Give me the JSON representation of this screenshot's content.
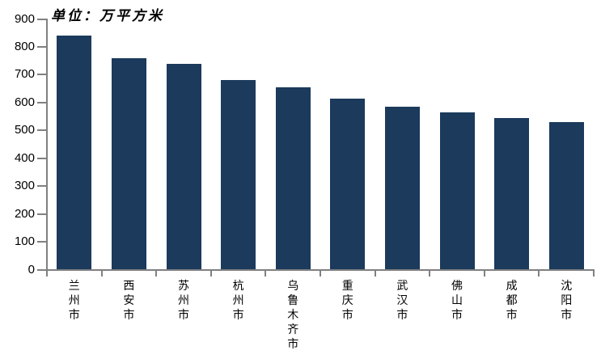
{
  "chart_data": {
    "type": "bar",
    "title": "单位：万平方米",
    "categories": [
      "兰州市",
      "西安市",
      "苏州市",
      "杭州市",
      "乌鲁木齐市",
      "重庆市",
      "武汉市",
      "佛山市",
      "成都市",
      "沈阳市"
    ],
    "values": [
      840,
      760,
      740,
      680,
      655,
      613,
      584,
      566,
      544,
      530
    ],
    "xlabel": "",
    "ylabel": "",
    "ylim": [
      0,
      900
    ],
    "ytick_step": 100,
    "grid": false,
    "legend_position": "none",
    "bar_color": "#1b3a5c",
    "axis_color": "#808080",
    "text_color": "#000000"
  }
}
